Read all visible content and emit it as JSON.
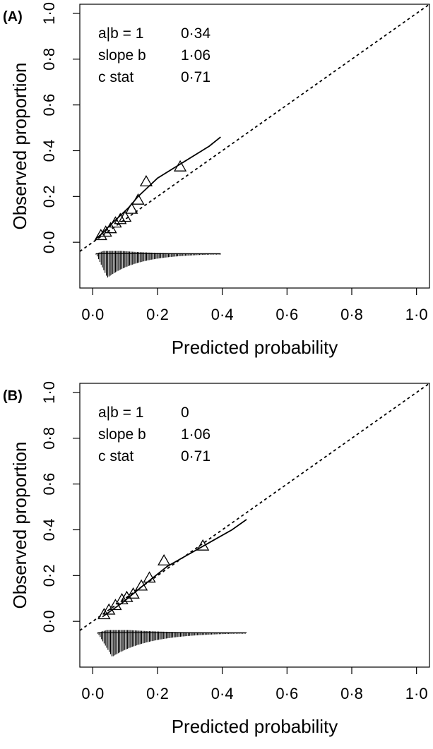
{
  "chart_data": [
    {
      "type": "line",
      "panel_label": "(A)",
      "xlabel": "Predicted probability",
      "ylabel": "Observed proportion",
      "xlim": [
        -0.04,
        1.04
      ],
      "ylim": [
        -0.2,
        1.04
      ],
      "x_ticks": [
        "0·0",
        "0·2",
        "0·4",
        "0·6",
        "0·8",
        "1·0"
      ],
      "x_tick_values": [
        0,
        0.2,
        0.4,
        0.6,
        0.8,
        1.0
      ],
      "y_ticks": [
        "0·0",
        "0·2",
        "0·4",
        "0·6",
        "0·8",
        "1·0"
      ],
      "y_tick_values": [
        0,
        0.2,
        0.4,
        0.6,
        0.8,
        1.0
      ],
      "stats": [
        {
          "label": "a|b = 1",
          "value": "0·34"
        },
        {
          "label": "slope b",
          "value": "1·06"
        },
        {
          "label": "c stat",
          "value": "0·71"
        }
      ],
      "reference_line": {
        "x": [
          -0.04,
          1.04
        ],
        "y": [
          -0.04,
          1.04
        ]
      },
      "calibration_curve": {
        "x": [
          0.01,
          0.03,
          0.05,
          0.08,
          0.11,
          0.14,
          0.17,
          0.2,
          0.24,
          0.28,
          0.32,
          0.36,
          0.395
        ],
        "y": [
          0.015,
          0.04,
          0.07,
          0.11,
          0.15,
          0.2,
          0.24,
          0.28,
          0.315,
          0.35,
          0.385,
          0.42,
          0.46
        ]
      },
      "grouped_points": {
        "x": [
          0.025,
          0.04,
          0.055,
          0.07,
          0.085,
          0.1,
          0.12,
          0.14,
          0.165,
          0.27
        ],
        "y": [
          0.03,
          0.045,
          0.06,
          0.085,
          0.1,
          0.11,
          0.145,
          0.185,
          0.265,
          0.33
        ]
      },
      "distribution": {
        "x_min": 0.01,
        "x_max": 0.395,
        "peak_x": 0.045,
        "baseline_y": -0.05,
        "max_depth": 0.105
      }
    },
    {
      "type": "line",
      "panel_label": "(B)",
      "xlabel": "Predicted probability",
      "ylabel": "Observed proportion",
      "xlim": [
        -0.04,
        1.04
      ],
      "ylim": [
        -0.2,
        1.04
      ],
      "x_ticks": [
        "0·0",
        "0·2",
        "0·4",
        "0·6",
        "0·8",
        "1·0"
      ],
      "x_tick_values": [
        0,
        0.2,
        0.4,
        0.6,
        0.8,
        1.0
      ],
      "y_ticks": [
        "0·0",
        "0·2",
        "0·4",
        "0·6",
        "0·8",
        "1·0"
      ],
      "y_tick_values": [
        0,
        0.2,
        0.4,
        0.6,
        0.8,
        1.0
      ],
      "stats": [
        {
          "label": "a|b = 1",
          "value": "0"
        },
        {
          "label": "slope b",
          "value": "1·06"
        },
        {
          "label": "c stat",
          "value": "0·71"
        }
      ],
      "reference_line": {
        "x": [
          -0.04,
          1.04
        ],
        "y": [
          -0.04,
          1.04
        ]
      },
      "calibration_curve": {
        "x": [
          0.03,
          0.06,
          0.09,
          0.12,
          0.15,
          0.19,
          0.23,
          0.28,
          0.33,
          0.38,
          0.43,
          0.475
        ],
        "y": [
          0.02,
          0.05,
          0.08,
          0.115,
          0.15,
          0.195,
          0.24,
          0.28,
          0.32,
          0.36,
          0.4,
          0.445
        ]
      },
      "grouped_points": {
        "x": [
          0.035,
          0.05,
          0.07,
          0.09,
          0.105,
          0.125,
          0.15,
          0.175,
          0.22,
          0.34
        ],
        "y": [
          0.03,
          0.05,
          0.07,
          0.095,
          0.105,
          0.12,
          0.155,
          0.19,
          0.265,
          0.33
        ]
      },
      "distribution": {
        "x_min": 0.015,
        "x_max": 0.475,
        "peak_x": 0.06,
        "baseline_y": -0.05,
        "max_depth": 0.105
      }
    }
  ]
}
